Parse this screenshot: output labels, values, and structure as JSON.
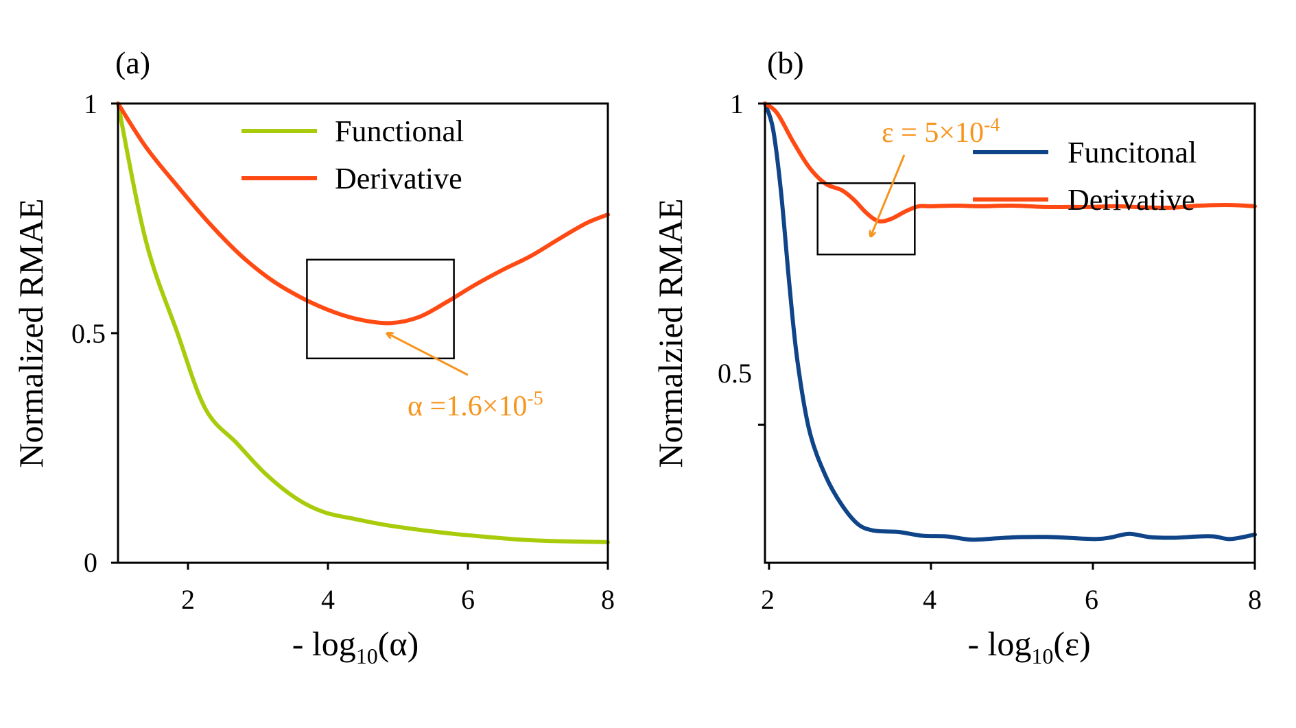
{
  "figure": {
    "colors": {
      "functional_a": "#a8cc0b",
      "derivative": "#ff4a14",
      "functional_b": "#0f4588",
      "annotation": "#f7941d",
      "axis": "#000000"
    }
  },
  "chart_data": [
    {
      "panel_label": "(a)",
      "type": "line",
      "xlabel": "- log10(α)",
      "xlabel_parts": {
        "pre": "- log",
        "sub": "10",
        "post": "(α)"
      },
      "ylabel": "Normalized RMAE",
      "xlim": [
        1,
        8
      ],
      "ylim": [
        0,
        1
      ],
      "xticks": [
        2,
        4,
        6,
        8
      ],
      "xtick_labels": [
        "2",
        "4",
        "6",
        "8"
      ],
      "yticks": [
        0,
        0.5,
        1
      ],
      "ytick_labels": [
        "0",
        "0.5",
        "1"
      ],
      "legend_position": "top-center",
      "series": [
        {
          "name": "Functional",
          "color": "#a8cc0b",
          "x": [
            1.0,
            1.4,
            1.85,
            2.25,
            2.7,
            3.1,
            3.55,
            3.95,
            4.4,
            4.8,
            5.3,
            5.8,
            6.3,
            6.8,
            7.3,
            8.0
          ],
          "y": [
            1.0,
            0.7,
            0.5,
            0.335,
            0.26,
            0.195,
            0.14,
            0.11,
            0.095,
            0.083,
            0.072,
            0.063,
            0.056,
            0.05,
            0.047,
            0.045
          ]
        },
        {
          "name": "Derivative",
          "color": "#ff4a14",
          "x": [
            1.0,
            1.4,
            1.85,
            2.3,
            2.75,
            3.2,
            3.65,
            4.1,
            4.5,
            4.9,
            5.3,
            5.7,
            6.1,
            6.5,
            6.9,
            7.3,
            7.7,
            8.0
          ],
          "y": [
            1.0,
            0.905,
            0.82,
            0.74,
            0.67,
            0.615,
            0.575,
            0.545,
            0.528,
            0.522,
            0.535,
            0.568,
            0.605,
            0.638,
            0.668,
            0.705,
            0.74,
            0.758
          ]
        }
      ],
      "annotation": {
        "text": "α =1.6×10",
        "exponent": "-5",
        "points_to": {
          "x": 4.9,
          "y": 0.522
        }
      },
      "highlight_box": {
        "x": [
          3.7,
          5.8
        ],
        "y": [
          0.445,
          0.66
        ]
      }
    },
    {
      "panel_label": "(b)",
      "type": "line",
      "xlabel": "- log10(ε)",
      "xlabel_parts": {
        "pre": "- log",
        "sub": "10",
        "post": "(ε)"
      },
      "ylabel": "Normalzied RMAE",
      "xlim": [
        1.95,
        8
      ],
      "ylim": [
        0.285,
        1
      ],
      "xticks": [
        2,
        4,
        6,
        8
      ],
      "xtick_labels": [
        "2",
        "4",
        "6",
        "8"
      ],
      "yticks": [
        0.5,
        1
      ],
      "ytick_labels": [
        "0.5",
        "1"
      ],
      "legend_position": "top-right",
      "series": [
        {
          "name": "Funcitonal",
          "color": "#0f4588",
          "x": [
            1.95,
            2.05,
            2.15,
            2.25,
            2.35,
            2.5,
            2.7,
            2.9,
            3.1,
            3.3,
            3.6,
            3.9,
            4.2,
            4.5,
            4.8,
            5.1,
            5.5,
            6.0,
            6.2,
            6.45,
            6.7,
            7.0,
            7.3,
            7.5,
            7.7,
            8.0
          ],
          "y": [
            1.0,
            0.96,
            0.86,
            0.72,
            0.6,
            0.49,
            0.42,
            0.375,
            0.345,
            0.335,
            0.333,
            0.327,
            0.326,
            0.321,
            0.323,
            0.325,
            0.325,
            0.322,
            0.324,
            0.33,
            0.325,
            0.324,
            0.326,
            0.326,
            0.322,
            0.329
          ]
        },
        {
          "name": "Derivative",
          "color": "#ff4a14",
          "x": [
            1.95,
            2.1,
            2.3,
            2.5,
            2.7,
            2.9,
            3.05,
            3.2,
            3.35,
            3.5,
            3.7,
            3.85,
            4.0,
            4.3,
            4.6,
            5.0,
            5.4,
            5.7,
            6.0,
            6.3,
            6.7,
            7.0,
            7.3,
            7.7,
            8.0
          ],
          "y": [
            1.0,
            0.985,
            0.94,
            0.9,
            0.875,
            0.865,
            0.85,
            0.83,
            0.817,
            0.82,
            0.833,
            0.84,
            0.84,
            0.841,
            0.84,
            0.841,
            0.839,
            0.839,
            0.839,
            0.84,
            0.838,
            0.838,
            0.841,
            0.842,
            0.84
          ]
        }
      ],
      "annotation": {
        "text": "ε = 5×10",
        "exponent": "-4",
        "points_to": {
          "x": 3.25,
          "y": 0.83
        }
      },
      "highlight_box": {
        "x": [
          2.6,
          3.8
        ],
        "y": [
          0.765,
          0.876
        ]
      }
    }
  ]
}
